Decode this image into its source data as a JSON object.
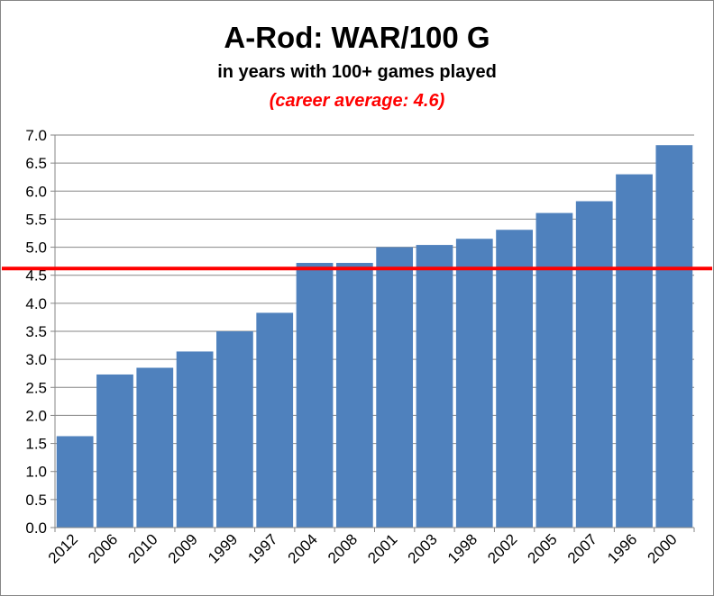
{
  "chart_data": {
    "type": "bar",
    "title": "A-Rod: WAR/100 G",
    "subtitle": "in years with 100+ games played",
    "annotation": "(career average: 4.6)",
    "categories": [
      "2012",
      "2006",
      "2010",
      "2009",
      "1999",
      "1997",
      "2004",
      "2008",
      "2001",
      "2003",
      "1998",
      "2002",
      "2005",
      "2007",
      "1996",
      "2000"
    ],
    "values": [
      1.63,
      2.73,
      2.85,
      3.14,
      3.5,
      3.83,
      4.72,
      4.72,
      5.0,
      5.04,
      5.15,
      5.31,
      5.61,
      5.82,
      6.3,
      6.82
    ],
    "ylim": [
      0,
      7
    ],
    "ystep": 0.5,
    "yticks": [
      "0.0",
      "0.5",
      "1.0",
      "1.5",
      "2.0",
      "2.5",
      "3.0",
      "3.5",
      "4.0",
      "4.5",
      "5.0",
      "5.5",
      "6.0",
      "6.5",
      "7.0"
    ],
    "reference_line": {
      "value": 4.62,
      "color": "#ff0000"
    },
    "bar_color": "#4f81bd",
    "grid": true,
    "legend": "none"
  }
}
